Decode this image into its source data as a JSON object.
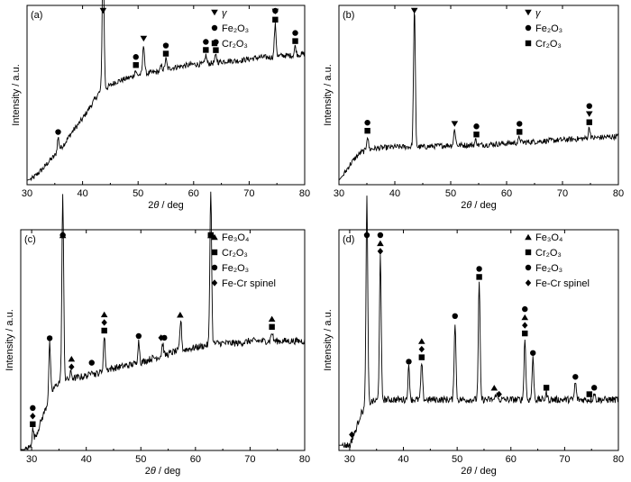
{
  "chart_data": [
    {
      "type": "line",
      "panel_label": "(a)",
      "xlabel": "2θ / deg",
      "ylabel": "Intensity / a.u.",
      "xlim": [
        30,
        80
      ],
      "xticks": [
        30,
        40,
        50,
        60,
        70,
        80
      ],
      "legend": [
        {
          "marker": "triangle-down",
          "label": "γ"
        },
        {
          "marker": "circle",
          "label": "Fe₂O₃"
        },
        {
          "marker": "square",
          "label": "Cr₂O₃"
        }
      ],
      "baseline": [
        [
          30,
          2
        ],
        [
          31,
          3
        ],
        [
          32,
          6
        ],
        [
          33,
          9
        ],
        [
          34,
          13
        ],
        [
          35,
          16
        ],
        [
          36,
          20
        ],
        [
          37,
          24
        ],
        [
          38,
          29
        ],
        [
          39,
          33
        ],
        [
          40,
          37
        ],
        [
          41,
          42
        ],
        [
          42,
          47
        ],
        [
          43,
          52
        ],
        [
          45,
          56
        ],
        [
          46,
          58
        ],
        [
          48,
          60
        ],
        [
          50,
          62
        ],
        [
          52,
          63
        ],
        [
          54,
          64
        ],
        [
          56,
          66
        ],
        [
          58,
          67
        ],
        [
          60,
          68
        ],
        [
          62,
          68
        ],
        [
          64,
          69
        ],
        [
          66,
          70
        ],
        [
          68,
          70
        ],
        [
          70,
          71
        ],
        [
          72,
          72
        ],
        [
          74,
          72
        ],
        [
          76,
          73
        ],
        [
          78,
          73
        ],
        [
          80,
          74
        ]
      ],
      "peaks": [
        {
          "x": 35.6,
          "h": 8
        },
        {
          "x": 43.7,
          "h": 80
        },
        {
          "x": 49.5,
          "h": 3
        },
        {
          "x": 51.0,
          "h": 17
        },
        {
          "x": 54.2,
          "h": 3
        },
        {
          "x": 55.0,
          "h": 6
        },
        {
          "x": 62.2,
          "h": 5
        },
        {
          "x": 64.0,
          "h": 4
        },
        {
          "x": 74.7,
          "h": 18
        },
        {
          "x": 78.3,
          "h": 5
        }
      ],
      "markers": [
        {
          "x": 35.6,
          "stack": [
            "circle"
          ]
        },
        {
          "x": 43.7,
          "stack": [
            "triangle-down"
          ]
        },
        {
          "x": 49.6,
          "stack": [
            "square",
            "circle"
          ]
        },
        {
          "x": 51.0,
          "stack": [
            "triangle-down"
          ]
        },
        {
          "x": 55.0,
          "stack": [
            "square",
            "circle"
          ]
        },
        {
          "x": 62.2,
          "stack": [
            "square",
            "circle"
          ]
        },
        {
          "x": 64.0,
          "stack": [
            "square",
            "circle"
          ]
        },
        {
          "x": 74.7,
          "stack": [
            "square",
            "triangle-down",
            "circle"
          ]
        },
        {
          "x": 78.3,
          "stack": [
            "square",
            "circle"
          ]
        }
      ]
    },
    {
      "type": "line",
      "panel_label": "(b)",
      "xlabel": "2θ / deg",
      "ylabel": "Intensity / a.u.",
      "xlim": [
        30,
        80
      ],
      "xticks": [
        30,
        40,
        50,
        60,
        70,
        80
      ],
      "legend": [
        {
          "marker": "triangle-down",
          "label": "γ"
        },
        {
          "marker": "circle",
          "label": "Fe₂O₃"
        },
        {
          "marker": "square",
          "label": "Cr₂O₃"
        }
      ],
      "baseline": [
        [
          30,
          2
        ],
        [
          31,
          6
        ],
        [
          32,
          11
        ],
        [
          33,
          15
        ],
        [
          34,
          18
        ],
        [
          35,
          19
        ],
        [
          36,
          20
        ],
        [
          40,
          21
        ],
        [
          45,
          21
        ],
        [
          50,
          22
        ],
        [
          55,
          22
        ],
        [
          60,
          23
        ],
        [
          65,
          24
        ],
        [
          70,
          25
        ],
        [
          75,
          26
        ],
        [
          80,
          27
        ]
      ],
      "peaks": [
        {
          "x": 35.1,
          "h": 8
        },
        {
          "x": 43.5,
          "h": 78
        },
        {
          "x": 50.7,
          "h": 9
        },
        {
          "x": 54.5,
          "h": 3
        },
        {
          "x": 62.3,
          "h": 3
        },
        {
          "x": 74.8,
          "h": 6
        }
      ],
      "markers": [
        {
          "x": 35.1,
          "stack": [
            "square",
            "circle"
          ]
        },
        {
          "x": 43.5,
          "stack": [
            "triangle-down"
          ]
        },
        {
          "x": 50.7,
          "stack": [
            "triangle-down"
          ]
        },
        {
          "x": 54.6,
          "stack": [
            "square",
            "circle"
          ]
        },
        {
          "x": 62.3,
          "stack": [
            "square",
            "circle"
          ]
        },
        {
          "x": 74.8,
          "stack": [
            "square",
            "triangle-down",
            "circle"
          ]
        }
      ]
    },
    {
      "type": "line",
      "panel_label": "(c)",
      "xlabel": "2θ / deg",
      "ylabel": "Intensity / a.u.",
      "xlim": [
        28,
        80
      ],
      "xticks": [
        30,
        40,
        50,
        60,
        70,
        80
      ],
      "legend": [
        {
          "marker": "triangle-up",
          "label": "Fe₃O₄"
        },
        {
          "marker": "square",
          "label": "Cr₂O₃"
        },
        {
          "marker": "circle",
          "label": "Fe₂O₃"
        },
        {
          "marker": "diamond",
          "label": "Fe-Cr spinel"
        }
      ],
      "baseline": [
        [
          29,
          0
        ],
        [
          30,
          2
        ],
        [
          31,
          8
        ],
        [
          32,
          15
        ],
        [
          33,
          22
        ],
        [
          34,
          28
        ],
        [
          35,
          31
        ],
        [
          36,
          32
        ],
        [
          38,
          33
        ],
        [
          40,
          34
        ],
        [
          42,
          35
        ],
        [
          44,
          37
        ],
        [
          46,
          38
        ],
        [
          48,
          39
        ],
        [
          50,
          40
        ],
        [
          52,
          42
        ],
        [
          54,
          43
        ],
        [
          56,
          45
        ],
        [
          58,
          46
        ],
        [
          60,
          47
        ],
        [
          62,
          48
        ],
        [
          64,
          49
        ],
        [
          66,
          49
        ],
        [
          68,
          49
        ],
        [
          70,
          50
        ],
        [
          72,
          50
        ],
        [
          74,
          50
        ],
        [
          76,
          50
        ],
        [
          78,
          50
        ],
        [
          80,
          50
        ]
      ],
      "peaks": [
        {
          "x": 30.2,
          "h": 6
        },
        {
          "x": 33.3,
          "h": 25
        },
        {
          "x": 35.7,
          "h": 85
        },
        {
          "x": 37.2,
          "h": 3
        },
        {
          "x": 41.0,
          "h": 3
        },
        {
          "x": 43.3,
          "h": 16
        },
        {
          "x": 49.6,
          "h": 10
        },
        {
          "x": 54.0,
          "h": 6
        },
        {
          "x": 57.3,
          "h": 14
        },
        {
          "x": 62.8,
          "h": 72
        },
        {
          "x": 74.0,
          "h": 4
        }
      ],
      "markers": [
        {
          "x": 30.2,
          "stack": [
            "square",
            "diamond",
            "circle"
          ]
        },
        {
          "x": 33.3,
          "stack": [
            "circle"
          ]
        },
        {
          "x": 35.7,
          "stack": [
            "diamond",
            "triangle-up",
            "circle"
          ]
        },
        {
          "x": 37.3,
          "stack": [
            "diamond",
            "triangle-up"
          ]
        },
        {
          "x": 41.0,
          "stack": [
            "circle"
          ]
        },
        {
          "x": 43.3,
          "stack": [
            "square",
            "diamond",
            "triangle-up"
          ]
        },
        {
          "x": 49.6,
          "stack": [
            "circle"
          ]
        },
        {
          "x": 53.7,
          "stack": [
            "diamond"
          ]
        },
        {
          "x": 54.3,
          "stack": [
            "circle"
          ]
        },
        {
          "x": 57.2,
          "stack": [
            "triangle-up"
          ]
        },
        {
          "x": 62.8,
          "stack": [
            "square",
            "triangle-up",
            "circle"
          ]
        },
        {
          "x": 74.0,
          "stack": [
            "square",
            "triangle-up"
          ]
        }
      ]
    },
    {
      "type": "line",
      "panel_label": "(d)",
      "xlabel": "2θ / deg",
      "ylabel": "Intensity / a.u.",
      "xlim": [
        28,
        80
      ],
      "xticks": [
        30,
        40,
        50,
        60,
        70,
        80
      ],
      "legend": [
        {
          "marker": "triangle-up",
          "label": "Fe₃O₄"
        },
        {
          "marker": "square",
          "label": "Cr₂O₃"
        },
        {
          "marker": "circle",
          "label": "Fe₂O₃"
        },
        {
          "marker": "diamond",
          "label": "Fe-Cr spinel"
        }
      ],
      "baseline": [
        [
          30,
          2
        ],
        [
          31,
          8
        ],
        [
          32,
          16
        ],
        [
          33,
          20
        ],
        [
          34,
          22
        ],
        [
          36,
          23
        ],
        [
          40,
          23
        ],
        [
          45,
          23
        ],
        [
          50,
          23
        ],
        [
          55,
          23
        ],
        [
          60,
          23
        ],
        [
          65,
          23
        ],
        [
          70,
          23
        ],
        [
          75,
          23
        ],
        [
          80,
          23
        ]
      ],
      "peaks": [
        {
          "x": 33.2,
          "h": 95
        },
        {
          "x": 35.7,
          "h": 66
        },
        {
          "x": 41.0,
          "h": 15
        },
        {
          "x": 43.4,
          "h": 17
        },
        {
          "x": 49.6,
          "h": 36
        },
        {
          "x": 54.1,
          "h": 54
        },
        {
          "x": 57.3,
          "h": 3
        },
        {
          "x": 62.6,
          "h": 28
        },
        {
          "x": 64.1,
          "h": 19
        },
        {
          "x": 66.6,
          "h": 3
        },
        {
          "x": 72.0,
          "h": 8
        },
        {
          "x": 75.5,
          "h": 3
        }
      ],
      "markers": [
        {
          "x": 30.4,
          "stack": [
            "diamond"
          ]
        },
        {
          "x": 33.2,
          "stack": [
            "circle"
          ]
        },
        {
          "x": 35.7,
          "stack": [
            "diamond",
            "triangle-up",
            "circle"
          ]
        },
        {
          "x": 41.0,
          "stack": [
            "circle"
          ]
        },
        {
          "x": 43.4,
          "stack": [
            "square",
            "diamond",
            "triangle-up"
          ]
        },
        {
          "x": 49.6,
          "stack": [
            "circle"
          ]
        },
        {
          "x": 54.1,
          "stack": [
            "square",
            "circle"
          ]
        },
        {
          "x": 56.9,
          "stack": [
            "triangle-up"
          ]
        },
        {
          "x": 57.8,
          "stack": [
            "diamond"
          ]
        },
        {
          "x": 62.6,
          "stack": [
            "square",
            "diamond",
            "triangle-up",
            "circle"
          ]
        },
        {
          "x": 64.1,
          "stack": [
            "circle"
          ]
        },
        {
          "x": 66.6,
          "stack": [
            "square"
          ]
        },
        {
          "x": 72.0,
          "stack": [
            "circle"
          ]
        },
        {
          "x": 74.6,
          "stack": [
            "square"
          ]
        },
        {
          "x": 75.5,
          "stack": [
            "circle"
          ]
        }
      ]
    }
  ]
}
